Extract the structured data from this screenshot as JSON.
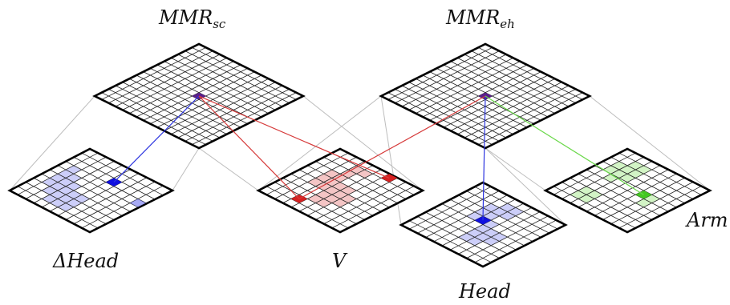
{
  "labels": {
    "mmr_sc": {
      "base": "MMR",
      "sub": "sc"
    },
    "mmr_eh": {
      "base": "MMR",
      "sub": "eh"
    },
    "delta_head": "ΔHead",
    "v": "V",
    "head": "Head",
    "arm": "Arm"
  },
  "maps": {
    "mmr_sc": {
      "cells": 15,
      "highlights": [],
      "node": [
        7,
        7
      ],
      "node_color": "#5a1f8c"
    },
    "mmr_eh": {
      "cells": 15,
      "highlights": [],
      "node": [
        7,
        7
      ],
      "node_color": "#5a1f8c"
    },
    "delta_head": {
      "cells": 10,
      "color": "#6d72ee",
      "node": [
        7,
        5
      ],
      "node2": [
        6,
        9
      ],
      "highlights": [
        [
          3,
          1
        ],
        [
          4,
          1
        ],
        [
          5,
          1
        ],
        [
          6,
          1
        ],
        [
          2,
          2
        ],
        [
          3,
          2
        ],
        [
          4,
          2
        ],
        [
          5,
          2
        ],
        [
          1,
          3
        ],
        [
          2,
          3
        ],
        [
          3,
          3
        ],
        [
          4,
          3
        ],
        [
          1,
          4
        ],
        [
          2,
          4
        ],
        [
          3,
          4
        ],
        [
          1,
          5
        ],
        [
          2,
          5
        ],
        [
          3,
          5
        ]
      ]
    },
    "v": {
      "cells": 10,
      "color": "#e05a5a",
      "node": [
        1,
        3
      ],
      "node2": [
        9,
        6
      ],
      "highlights": [
        [
          4,
          2
        ],
        [
          5,
          2
        ],
        [
          6,
          2
        ],
        [
          4,
          3
        ],
        [
          5,
          3
        ],
        [
          6,
          3
        ],
        [
          7,
          3
        ],
        [
          8,
          3
        ],
        [
          2,
          4
        ],
        [
          3,
          4
        ],
        [
          4,
          4
        ],
        [
          5,
          4
        ],
        [
          8,
          4
        ],
        [
          2,
          5
        ],
        [
          3,
          5
        ],
        [
          4,
          5
        ],
        [
          5,
          5
        ],
        [
          3,
          6
        ],
        [
          4,
          6
        ]
      ]
    },
    "head": {
      "cells": 10,
      "color": "#6d72ee",
      "node": [
        5,
        4
      ],
      "highlights": [
        [
          5,
          3
        ],
        [
          6,
          3
        ],
        [
          7,
          3
        ],
        [
          5,
          4
        ],
        [
          6,
          4
        ],
        [
          7,
          4
        ],
        [
          8,
          4
        ],
        [
          2,
          5
        ],
        [
          3,
          5
        ],
        [
          4,
          5
        ],
        [
          5,
          5
        ],
        [
          7,
          5
        ],
        [
          8,
          5
        ],
        [
          2,
          6
        ],
        [
          3,
          6
        ],
        [
          4,
          6
        ],
        [
          3,
          7
        ],
        [
          4,
          7
        ]
      ]
    },
    "arm": {
      "cells": 10,
      "color": "#7ddf5a",
      "node": [
        5,
        6
      ],
      "highlights": [
        [
          6,
          1
        ],
        [
          7,
          1
        ],
        [
          1,
          2
        ],
        [
          2,
          2
        ],
        [
          5,
          2
        ],
        [
          6,
          2
        ],
        [
          7,
          2
        ],
        [
          8,
          2
        ],
        [
          1,
          3
        ],
        [
          2,
          3
        ],
        [
          6,
          3
        ],
        [
          7,
          3
        ],
        [
          8,
          3
        ],
        [
          4,
          7
        ],
        [
          5,
          7
        ]
      ]
    }
  },
  "connections": [
    {
      "from": "mmr_sc",
      "to": "delta_head",
      "color": "#2d35e0"
    },
    {
      "from": "mmr_sc",
      "to": "v",
      "color": "#d63a3a"
    },
    {
      "from": "mmr_eh",
      "to": "v",
      "color": "#d63a3a"
    },
    {
      "from": "mmr_eh",
      "to": "head",
      "color": "#2d35e0"
    },
    {
      "from": "mmr_eh",
      "to": "arm",
      "color": "#6ad84a"
    }
  ]
}
